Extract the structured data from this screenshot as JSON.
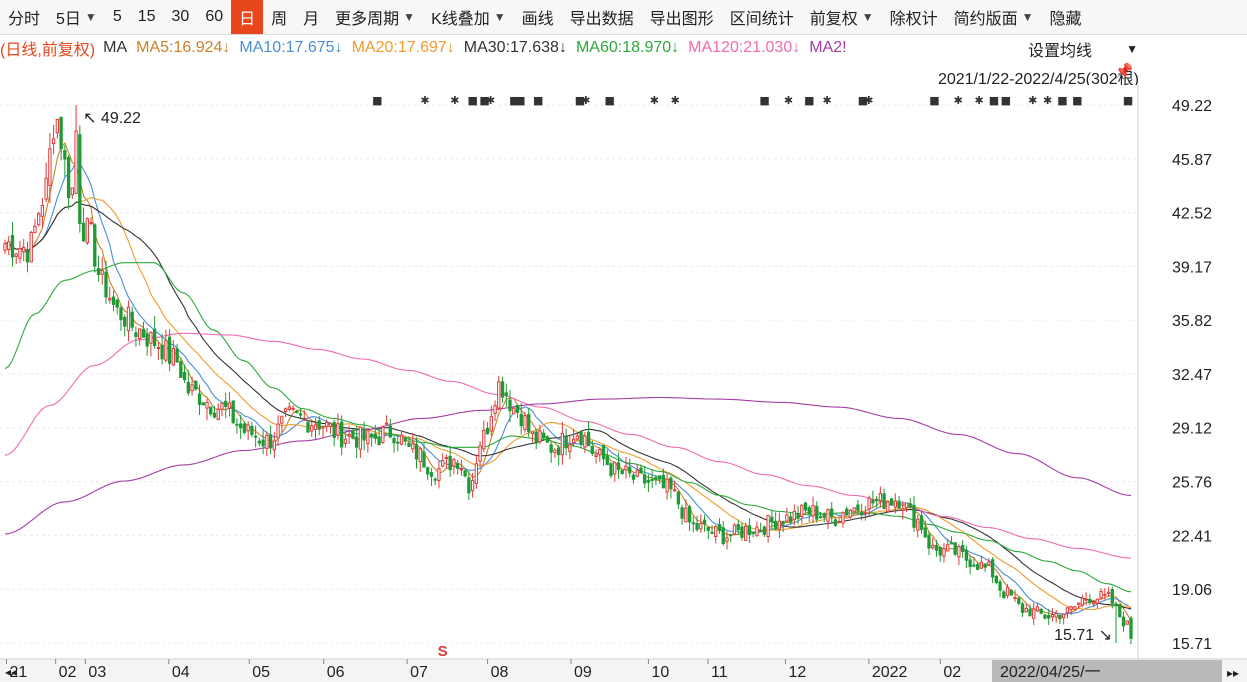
{
  "toolbar": {
    "items": [
      {
        "label": "分时",
        "caret": false,
        "active": false
      },
      {
        "label": "5日",
        "caret": true,
        "active": false
      },
      {
        "label": "5",
        "caret": false,
        "active": false
      },
      {
        "label": "15",
        "caret": false,
        "active": false
      },
      {
        "label": "30",
        "caret": false,
        "active": false
      },
      {
        "label": "60",
        "caret": false,
        "active": false
      },
      {
        "label": "日",
        "caret": false,
        "active": true
      },
      {
        "label": "周",
        "caret": false,
        "active": false
      },
      {
        "label": "月",
        "caret": false,
        "active": false
      },
      {
        "label": "更多周期",
        "caret": true,
        "active": false
      },
      {
        "label": "K线叠加",
        "caret": true,
        "active": false
      },
      {
        "label": "画线",
        "caret": false,
        "active": false
      },
      {
        "label": "导出数据",
        "caret": false,
        "active": false
      },
      {
        "label": "导出图形",
        "caret": false,
        "active": false
      },
      {
        "label": "区间统计",
        "caret": false,
        "active": false
      },
      {
        "label": "前复权",
        "caret": true,
        "active": false
      },
      {
        "label": "除权计",
        "caret": false,
        "active": false
      },
      {
        "label": "简约版面",
        "caret": true,
        "active": false
      },
      {
        "label": "隐藏",
        "caret": false,
        "active": false
      }
    ],
    "caret_glyph": "▼"
  },
  "legend": {
    "prefix": "(日线,前复权)",
    "ma_label": "MA",
    "items": [
      {
        "text": "MA5:16.924↓",
        "color": "#c8832a"
      },
      {
        "text": "MA10:17.675↓",
        "color": "#4a8fd6"
      },
      {
        "text": "MA20:17.697↓",
        "color": "#f39a2c"
      },
      {
        "text": "MA30:17.638↓",
        "color": "#333333"
      },
      {
        "text": "MA60:18.970↓",
        "color": "#2eaa3b"
      },
      {
        "text": "MA120:21.030↓",
        "color": "#f06bb0"
      },
      {
        "text": "MA2!",
        "color": "#a33ea3"
      }
    ]
  },
  "settings_label": "设置均线",
  "settings_caret": "▼",
  "range_text": "2021/1/22-2022/4/25(302根)",
  "pin_glyph": "📌",
  "chart_data": {
    "type": "candlestick",
    "y_ticks": [
      "49.22",
      "45.87",
      "42.52",
      "39.17",
      "35.82",
      "32.47",
      "29.12",
      "25.76",
      "22.41",
      "19.06",
      "15.71"
    ],
    "ylim": [
      15.71,
      49.22
    ],
    "x_labels": [
      "21",
      "02",
      "03",
      "04",
      "05",
      "06",
      "07",
      "08",
      "09",
      "10",
      "11",
      "12",
      "2022",
      "02"
    ],
    "x_labels_pos": [
      0.5,
      17,
      27,
      55,
      82,
      107,
      135,
      162,
      190,
      216,
      236,
      262,
      290,
      314
    ],
    "cursor_date": "2022/04/25/一",
    "n_bars": 302,
    "high_annotation": {
      "text": "49.22",
      "bar": 19
    },
    "low_annotation": {
      "text": "15.71",
      "bar": 297
    },
    "signal_glyph": "S",
    "signal_bar": 117,
    "close_anchors": [
      [
        0,
        40.6
      ],
      [
        8,
        40.3
      ],
      [
        13,
        43.5
      ],
      [
        17,
        48.5
      ],
      [
        22,
        44
      ],
      [
        28,
        41.2
      ],
      [
        33,
        38
      ],
      [
        38,
        36.3
      ],
      [
        45,
        35.2
      ],
      [
        50,
        34.5
      ],
      [
        57,
        33.4
      ],
      [
        62,
        31.4
      ],
      [
        72,
        30.4
      ],
      [
        82,
        28.8
      ],
      [
        88,
        28.3
      ],
      [
        96,
        29.8
      ],
      [
        104,
        29.5
      ],
      [
        114,
        28.6
      ],
      [
        122,
        28.4
      ],
      [
        130,
        28.9
      ],
      [
        137,
        27.6
      ],
      [
        145,
        26.5
      ],
      [
        152,
        27.2
      ],
      [
        156,
        25.6
      ],
      [
        160,
        28.4
      ],
      [
        166,
        31.8
      ],
      [
        172,
        30.2
      ],
      [
        178,
        28.4
      ],
      [
        184,
        27.9
      ],
      [
        192,
        28.9
      ],
      [
        200,
        27.2
      ],
      [
        206,
        26.3
      ],
      [
        214,
        25.8
      ],
      [
        222,
        25.3
      ],
      [
        232,
        22.9
      ],
      [
        242,
        22.4
      ],
      [
        252,
        22.9
      ],
      [
        262,
        23.5
      ],
      [
        270,
        23.9
      ],
      [
        278,
        23.5
      ],
      [
        284,
        24.1
      ],
      [
        292,
        24.5
      ],
      [
        300,
        24.7
      ],
      [
        306,
        23.4
      ],
      [
        312,
        21.5
      ],
      [
        318,
        21.4
      ],
      [
        324,
        20.9
      ],
      [
        330,
        20.3
      ],
      [
        336,
        18.8
      ],
      [
        342,
        17.8
      ],
      [
        350,
        17.4
      ],
      [
        356,
        17.6
      ],
      [
        364,
        18.6
      ],
      [
        370,
        18.5
      ],
      [
        376,
        17.1
      ],
      [
        378,
        16.0
      ]
    ],
    "ma": [
      {
        "name": "MA5",
        "color": "#c8832a"
      },
      {
        "name": "MA10",
        "color": "#4a8fd6"
      },
      {
        "name": "MA20",
        "color": "#f39a2c"
      },
      {
        "name": "MA30",
        "color": "#333333"
      },
      {
        "name": "MA60",
        "color": "#2eaa3b",
        "anchors": [
          [
            0,
            32.8
          ],
          [
            10,
            36.2
          ],
          [
            20,
            38.3
          ],
          [
            30,
            38.9
          ],
          [
            40,
            39.4
          ],
          [
            50,
            39.4
          ],
          [
            60,
            37.5
          ],
          [
            70,
            35.2
          ],
          [
            80,
            33.3
          ],
          [
            90,
            31.6
          ],
          [
            100,
            30.3
          ],
          [
            110,
            29.7
          ],
          [
            120,
            29.3
          ],
          [
            130,
            28.7
          ],
          [
            140,
            28.2
          ],
          [
            150,
            27.9
          ],
          [
            160,
            27.9
          ],
          [
            170,
            28.6
          ],
          [
            180,
            28.4
          ],
          [
            190,
            28.0
          ],
          [
            200,
            27.5
          ],
          [
            210,
            26.9
          ],
          [
            220,
            26.4
          ],
          [
            230,
            25.7
          ],
          [
            240,
            24.9
          ],
          [
            250,
            24.3
          ],
          [
            260,
            23.9
          ],
          [
            270,
            23.7
          ],
          [
            280,
            23.8
          ],
          [
            290,
            23.8
          ],
          [
            300,
            23.6
          ],
          [
            310,
            23.1
          ],
          [
            320,
            22.6
          ],
          [
            330,
            22.1
          ],
          [
            340,
            21.4
          ],
          [
            350,
            20.8
          ],
          [
            360,
            20.2
          ],
          [
            370,
            19.4
          ],
          [
            378,
            18.9
          ]
        ]
      },
      {
        "name": "MA120",
        "color": "#f06bb0",
        "anchors": [
          [
            0,
            27.4
          ],
          [
            15,
            30.5
          ],
          [
            30,
            33.0
          ],
          [
            45,
            34.6
          ],
          [
            60,
            35.0
          ],
          [
            75,
            34.9
          ],
          [
            90,
            34.5
          ],
          [
            105,
            34.0
          ],
          [
            120,
            33.4
          ],
          [
            135,
            32.7
          ],
          [
            150,
            32.0
          ],
          [
            165,
            31.2
          ],
          [
            180,
            30.4
          ],
          [
            195,
            29.5
          ],
          [
            210,
            28.7
          ],
          [
            225,
            27.9
          ],
          [
            240,
            27.0
          ],
          [
            255,
            26.2
          ],
          [
            270,
            25.5
          ],
          [
            285,
            24.9
          ],
          [
            300,
            24.3
          ],
          [
            315,
            23.6
          ],
          [
            330,
            22.9
          ],
          [
            345,
            22.2
          ],
          [
            360,
            21.6
          ],
          [
            378,
            21.0
          ]
        ]
      },
      {
        "name": "MA250",
        "color": "#a33ea3",
        "anchors": [
          [
            0,
            22.5
          ],
          [
            20,
            24.5
          ],
          [
            40,
            25.8
          ],
          [
            60,
            26.8
          ],
          [
            80,
            27.7
          ],
          [
            100,
            28.3
          ],
          [
            120,
            29.0
          ],
          [
            140,
            29.7
          ],
          [
            160,
            30.2
          ],
          [
            180,
            30.6
          ],
          [
            200,
            30.9
          ],
          [
            220,
            31.0
          ],
          [
            240,
            30.9
          ],
          [
            260,
            30.7
          ],
          [
            280,
            30.4
          ],
          [
            300,
            29.7
          ],
          [
            320,
            28.7
          ],
          [
            340,
            27.5
          ],
          [
            360,
            26.0
          ],
          [
            378,
            24.9
          ]
        ]
      }
    ],
    "up_color": "#e03a3a",
    "down_color": "#1f9a35",
    "event_marks": [
      {
        "bar": 125,
        "glyph": "■"
      },
      {
        "bar": 141,
        "glyph": "✱"
      },
      {
        "bar": 151,
        "glyph": "✱"
      },
      {
        "bar": 157,
        "glyph": "■"
      },
      {
        "bar": 161,
        "glyph": "■"
      },
      {
        "bar": 163,
        "glyph": "✱"
      },
      {
        "bar": 171,
        "glyph": "■"
      },
      {
        "bar": 173,
        "glyph": "■"
      },
      {
        "bar": 179,
        "glyph": "■"
      },
      {
        "bar": 193,
        "glyph": "■"
      },
      {
        "bar": 195,
        "glyph": "✱"
      },
      {
        "bar": 203,
        "glyph": "■"
      },
      {
        "bar": 218,
        "glyph": "✱"
      },
      {
        "bar": 225,
        "glyph": "✱"
      },
      {
        "bar": 255,
        "glyph": "■"
      },
      {
        "bar": 263,
        "glyph": "✱"
      },
      {
        "bar": 270,
        "glyph": "■"
      },
      {
        "bar": 276,
        "glyph": "✱"
      },
      {
        "bar": 288,
        "glyph": "■"
      },
      {
        "bar": 290,
        "glyph": "✱"
      },
      {
        "bar": 312,
        "glyph": "■"
      },
      {
        "bar": 320,
        "glyph": "✱"
      },
      {
        "bar": 327,
        "glyph": "✱"
      },
      {
        "bar": 332,
        "glyph": "■"
      },
      {
        "bar": 336,
        "glyph": "■"
      },
      {
        "bar": 345,
        "glyph": "✱"
      },
      {
        "bar": 350,
        "glyph": "✱"
      },
      {
        "bar": 355,
        "glyph": "■"
      },
      {
        "bar": 360,
        "glyph": "■"
      },
      {
        "bar": 377,
        "glyph": "■"
      }
    ]
  }
}
